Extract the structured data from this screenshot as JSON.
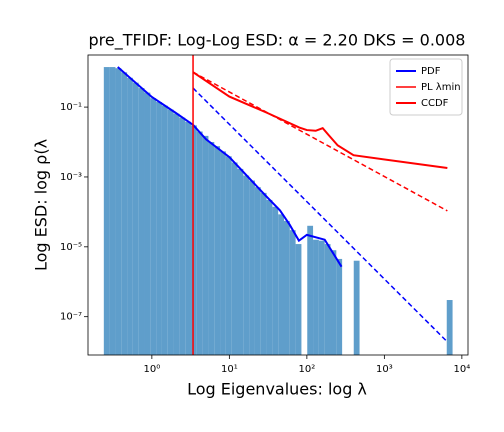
{
  "chart_data": {
    "type": "histogram",
    "title": "pre_TFIDF: Log-Log ESD:  α = 2.20 DKS = 0.008",
    "xlabel": "Log Eigenvalues:  log λ",
    "ylabel": "Log ESD:  log ρ(λ",
    "xlog": true,
    "ylog": true,
    "xlim": [
      0.15,
      12000
    ],
    "ylim": [
      8e-09,
      3.1
    ],
    "xticks": [
      {
        "value": 1,
        "label": "10⁰"
      },
      {
        "value": 10,
        "label": "10¹"
      },
      {
        "value": 100,
        "label": "10²"
      },
      {
        "value": 1000,
        "label": "10³"
      },
      {
        "value": 10000,
        "label": "10⁴"
      }
    ],
    "yticks": [
      {
        "value": 1e-07,
        "label": "10⁻⁷"
      },
      {
        "value": 1e-05,
        "label": "10⁻⁵"
      },
      {
        "value": 0.001,
        "label": "10⁻³"
      },
      {
        "value": 0.1,
        "label": "10⁻¹"
      }
    ],
    "color": "#5f9ecb",
    "bins": [
      0.24,
      0.285,
      0.339,
      0.403,
      0.479,
      0.569,
      0.676,
      0.804,
      0.955,
      1.135,
      1.349,
      1.603,
      1.905,
      2.265,
      2.692,
      3.199,
      3.802,
      4.519,
      5.37,
      6.383,
      7.586,
      9.016,
      10.72,
      12.74,
      15.14,
      17.99,
      21.38,
      25.41,
      30.2,
      35.89,
      42.66,
      50.7,
      60.26,
      71.61,
      85.11,
      101.2,
      120.2,
      142.9,
      169.8,
      201.8,
      239.9,
      285.1,
      338.8,
      402.7,
      478.6,
      568.9,
      676.1,
      803.5,
      955.0,
      1135,
      1349,
      1603,
      1905,
      2265,
      2692,
      3199,
      3802,
      4519,
      5370,
      6383,
      7586
    ],
    "counts": [
      1.4,
      1.4,
      1.3,
      0.99,
      0.69,
      0.5,
      0.35,
      0.26,
      0.18,
      0.14,
      0.11,
      0.085,
      0.065,
      0.05,
      0.038,
      0.03,
      0.02,
      0.015,
      0.01,
      0.0076,
      0.0054,
      0.0039,
      0.0026,
      0.0017,
      0.0011,
      0.00079,
      0.00051,
      0.00035,
      0.00022,
      0.00014,
      8.5e-05,
      5.5e-05,
      3e-05,
      1.2e-05,
      0,
      4e-05,
      1.6e-05,
      1.5e-05,
      1.2e-05,
      8e-06,
      4.5e-06,
      0,
      0,
      4e-06,
      0,
      0,
      0,
      0,
      0,
      0,
      0,
      0,
      0,
      0,
      0,
      0,
      0,
      0,
      0,
      3e-07
    ],
    "series": [
      {
        "name": "PDF",
        "color": "#0000ff",
        "style": "solid",
        "width": 2,
        "x": [
          0.363,
          1,
          2,
          3.4,
          5,
          10,
          29,
          45,
          60,
          79,
          100,
          170,
          280
        ],
        "values": [
          1.4,
          0.195,
          0.07,
          0.031,
          0.012,
          0.0037,
          0.0003,
          0.00011,
          4.3e-05,
          1.5e-05,
          2.2e-05,
          1.6e-05,
          2.7e-06
        ]
      },
      {
        "color": "#0000ff",
        "style": "dashed",
        "width": 1.5,
        "x": [
          3.4,
          6500
        ],
        "values": [
          0.35,
          1.9e-08
        ]
      },
      {
        "name": "PL λmin",
        "color": "#ff0000",
        "style": "vline",
        "width": 1.5,
        "x": [
          3.4
        ]
      },
      {
        "name": "CCDF",
        "color": "#ff0000",
        "style": "solid",
        "width": 2,
        "x": [
          3.4,
          10,
          30,
          80,
          100,
          130,
          160,
          190,
          250,
          400,
          6500
        ],
        "values": [
          1.0,
          0.2,
          0.07,
          0.026,
          0.022,
          0.021,
          0.025,
          0.016,
          0.008,
          0.0042,
          0.0018
        ]
      },
      {
        "color": "#ff0000",
        "style": "dashed",
        "width": 1.5,
        "x": [
          3.4,
          6500
        ],
        "values": [
          1.0,
          0.000107
        ]
      }
    ],
    "legend": "upper right"
  }
}
